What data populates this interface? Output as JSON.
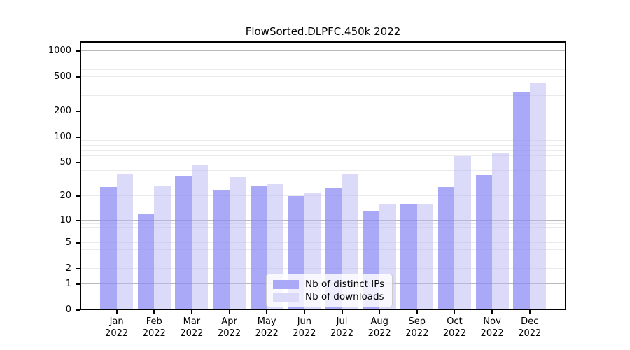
{
  "page": {
    "background": "#ffffff"
  },
  "chart_data": {
    "type": "bar",
    "title": "FlowSorted.DLPFC.450k 2022",
    "categories": [
      "Jan",
      "Feb",
      "Mar",
      "Apr",
      "May",
      "Jun",
      "Jul",
      "Aug",
      "Sep",
      "Oct",
      "Nov",
      "Dec"
    ],
    "category_year": "2022",
    "series": [
      {
        "name": "Nb of distinct IPs",
        "color": "rgba(136,136,245,0.72)",
        "legend_color": "#a9a9f8",
        "values": [
          26,
          12,
          35,
          24,
          27,
          20,
          25,
          13,
          16,
          26,
          36,
          330
        ]
      },
      {
        "name": "Nb of downloads",
        "color": "rgba(183,183,243,0.5)",
        "legend_color": "#dbdbf9",
        "values": [
          37,
          27,
          48,
          34,
          28,
          22,
          37,
          16,
          16,
          60,
          65,
          420
        ]
      }
    ],
    "yscale": "log10(value+1)",
    "y_ticks": [
      0,
      1,
      2,
      5,
      10,
      20,
      50,
      100,
      200,
      500,
      1000
    ],
    "y_max": 1300,
    "grid": {
      "on": true,
      "major_at": [
        1,
        10,
        100,
        1000
      ],
      "minor_at": [
        2,
        3,
        4,
        5,
        6,
        7,
        8,
        9,
        20,
        30,
        40,
        50,
        60,
        70,
        80,
        90,
        200,
        300,
        400,
        500,
        600,
        700,
        800,
        900
      ],
      "major_color": "#b9b9b9",
      "minor_color": "#ebebeb"
    },
    "legend_position": "bottom-center",
    "axis_color": "#000000"
  }
}
